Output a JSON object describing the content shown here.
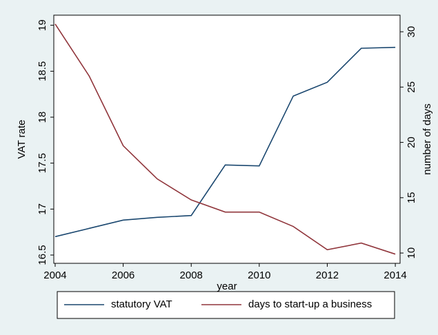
{
  "chart_data": {
    "type": "line",
    "x": [
      2004,
      2005,
      2006,
      2007,
      2008,
      2009,
      2010,
      2011,
      2012,
      2013,
      2014
    ],
    "series": [
      {
        "name": "statutory VAT",
        "color": "#1a476f",
        "values": [
          16.7,
          16.79,
          16.88,
          16.91,
          16.93,
          17.48,
          17.47,
          18.23,
          18.38,
          18.75,
          18.76
        ]
      },
      {
        "name": "days to start-up a business",
        "color": "#90353b",
        "axis": "y2",
        "values": [
          30.7,
          26.0,
          19.7,
          16.7,
          14.8,
          13.7,
          13.7,
          12.4,
          10.3,
          10.9,
          9.9
        ]
      }
    ],
    "xlabel": "year",
    "ylabel": "VAT rate",
    "y2label": "number of days",
    "xlim": [
      2003.96,
      2014.14
    ],
    "xticks": [
      2004,
      2006,
      2008,
      2010,
      2012,
      2014
    ],
    "ylim": [
      16.41,
      19.11
    ],
    "yticks": [
      16.5,
      17,
      17.5,
      18,
      18.5,
      19
    ],
    "y2lim": [
      9.07,
      31.5
    ],
    "y2ticks": [
      10,
      15,
      20,
      25,
      30
    ],
    "legend": "bottom"
  }
}
